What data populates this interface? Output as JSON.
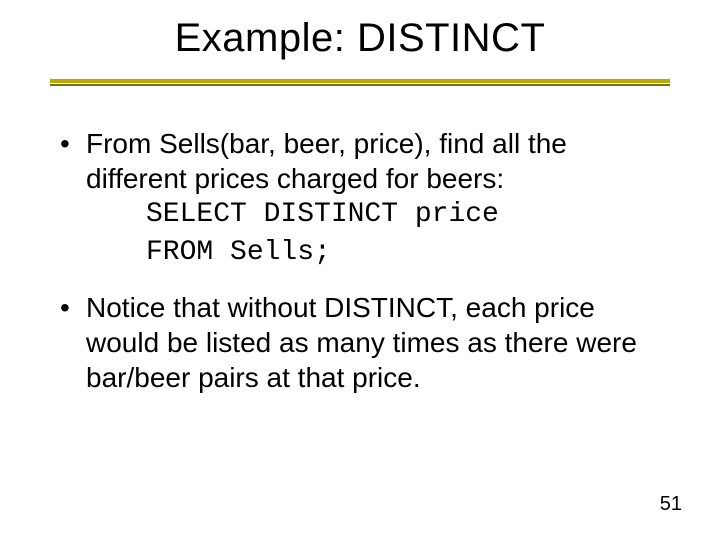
{
  "title": "Example: DISTINCT",
  "divider": {
    "top_color": "#b8aa00",
    "top_height": 4,
    "gap_height": 1,
    "bottom_color": "#77751a",
    "bottom_height": 2
  },
  "body_fontsize": 28,
  "title_fontsize": 40,
  "bullets": [
    {
      "text": "From Sells(bar, beer, price), find all the different prices charged for beers:",
      "code": [
        "SELECT DISTINCT price",
        "FROM Sells;"
      ]
    },
    {
      "text": "Notice that without DISTINCT, each price would be listed as many times as there were bar/beer pairs at that price."
    }
  ],
  "page_number": "51",
  "colors": {
    "background": "#ffffff",
    "text": "#000000"
  }
}
